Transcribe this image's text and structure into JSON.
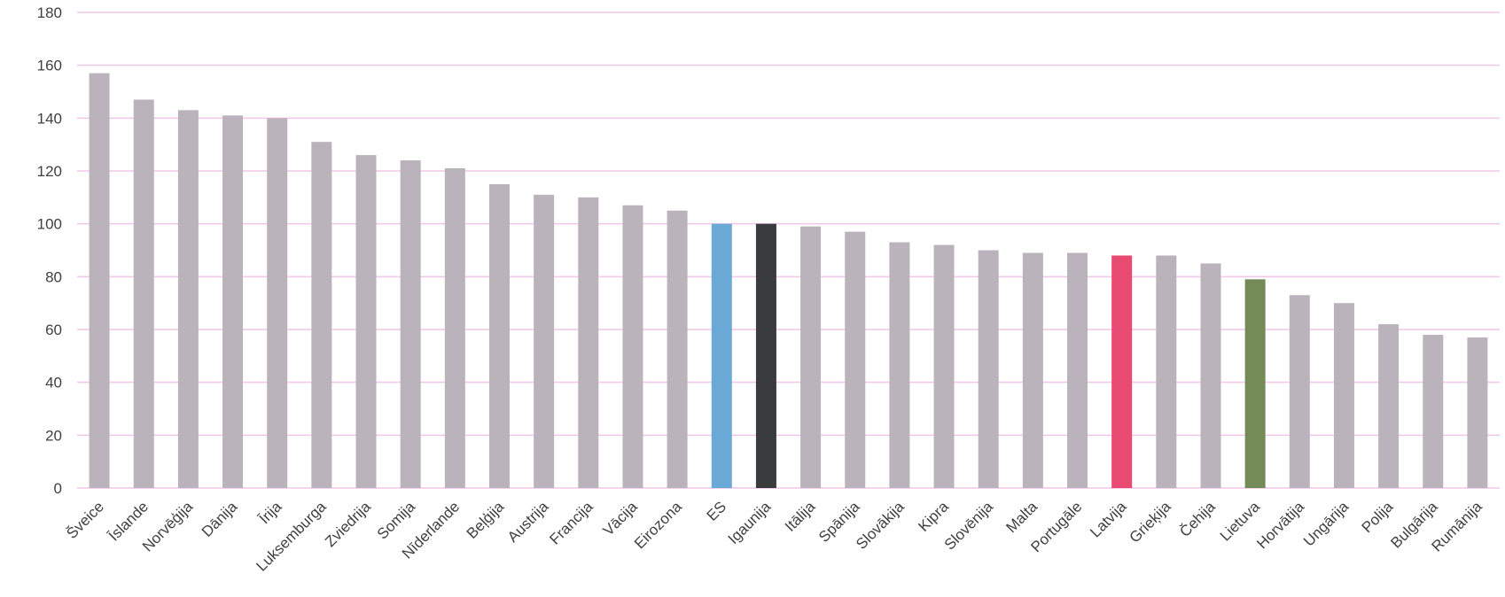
{
  "chart_data": {
    "type": "bar",
    "title": "",
    "xlabel": "",
    "ylabel": "",
    "ylim": [
      0,
      180
    ],
    "yticks": [
      0,
      20,
      40,
      60,
      80,
      100,
      120,
      140,
      160,
      180
    ],
    "grid": true,
    "legend": "none",
    "gridline_color": "#f2c6e8",
    "default_bar_color": "#bab3bb",
    "categories": [
      "Šveice",
      "Īslande",
      "Norvēģija",
      "Dānija",
      "Īrija",
      "Luksemburga",
      "Zviedrija",
      "Somija",
      "Nīderlande",
      "Beļģija",
      "Austrija",
      "Francija",
      "Vācija",
      "Eirozona",
      "ES",
      "Igaunija",
      "Itālija",
      "Spānija",
      "Slovākija",
      "Kipra",
      "Slovēnija",
      "Malta",
      "Portugāle",
      "Latvija",
      "Grieķija",
      "Čehija",
      "Lietuva",
      "Horvātija",
      "Ungārija",
      "Polija",
      "Bulgārija",
      "Rumānija"
    ],
    "values": [
      157,
      147,
      143,
      141,
      140,
      131,
      126,
      124,
      121,
      115,
      111,
      110,
      107,
      105,
      100,
      100,
      99,
      97,
      93,
      92,
      90,
      89,
      89,
      88,
      88,
      85,
      79,
      73,
      70,
      62,
      58,
      57
    ],
    "highlight_colors": {
      "ES": "#6aa8d6",
      "Igaunija": "#3a3b3d",
      "Latvija": "#e84a72",
      "Lietuva": "#748a57"
    }
  }
}
